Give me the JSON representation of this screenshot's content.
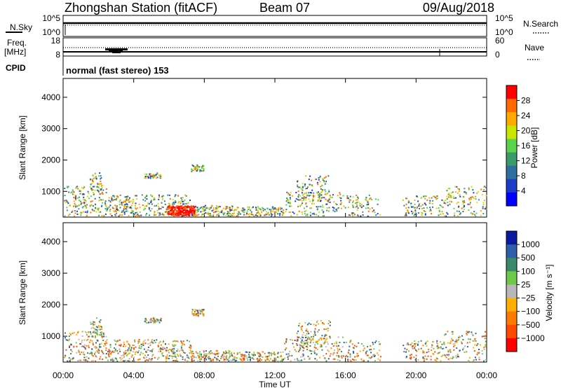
{
  "header": {
    "station": "Zhongshan Station (fitACF)",
    "beam": "Beam 07",
    "date": "09/Aug/2018"
  },
  "status_panels": {
    "nsky_label": "N.Sky",
    "nsky_ticks": [
      "10^5",
      "10^0"
    ],
    "nsearch_label": "N.Search",
    "nsearch_ticks": [
      "10^5",
      "10^0"
    ],
    "freq_label": "Freq.",
    "freq_unit": "[MHz]",
    "freq_ticks": [
      "18",
      "8"
    ],
    "nave_label": "Nave",
    "nave_ticks": [
      "60",
      "0"
    ],
    "cpid_label": "CPID",
    "cpid_text": "normal (fast stereo) 153"
  },
  "chart_data": [
    {
      "type": "heatmap",
      "name": "power",
      "ylabel": "Slant Range [km]",
      "yticks": [
        "4000",
        "3000",
        "2000",
        "1000"
      ],
      "ylim": [
        180,
        4600
      ],
      "xlim": [
        0,
        24
      ],
      "colorbar_label": "Power [dB]",
      "colorbar_ticks": [
        "28",
        "24",
        "20",
        "16",
        "12",
        "8",
        "4"
      ],
      "colorbar_colors": [
        "#ff0000",
        "#ff6a00",
        "#ffaa00",
        "#c8e600",
        "#5ad24a",
        "#3a9a6a",
        "#2f6fa0",
        "#1a3cc8",
        "#0000ff"
      ]
    },
    {
      "type": "heatmap",
      "name": "velocity",
      "ylabel": "Slant Range [km]",
      "yticks": [
        "4000",
        "3000",
        "2000",
        "1000"
      ],
      "ylim": [
        180,
        4600
      ],
      "xlim": [
        0,
        24
      ],
      "xlabel": "Time UT",
      "xticks": [
        "00:00",
        "04:00",
        "08:00",
        "12:00",
        "16:00",
        "20:00",
        "00:00"
      ],
      "colorbar_label": "Velocity [m s⁻¹]",
      "colorbar_ticks": [
        "1000",
        "500",
        "100",
        "25",
        "−25",
        "−100",
        "−500",
        "−1000"
      ],
      "colorbar_colors": [
        "#0a1aa0",
        "#2f5fa8",
        "#3a8a6a",
        "#6ec84a",
        "#b8b8b8",
        "#ffb000",
        "#ff7a00",
        "#ff4a00",
        "#ff0000"
      ]
    }
  ]
}
